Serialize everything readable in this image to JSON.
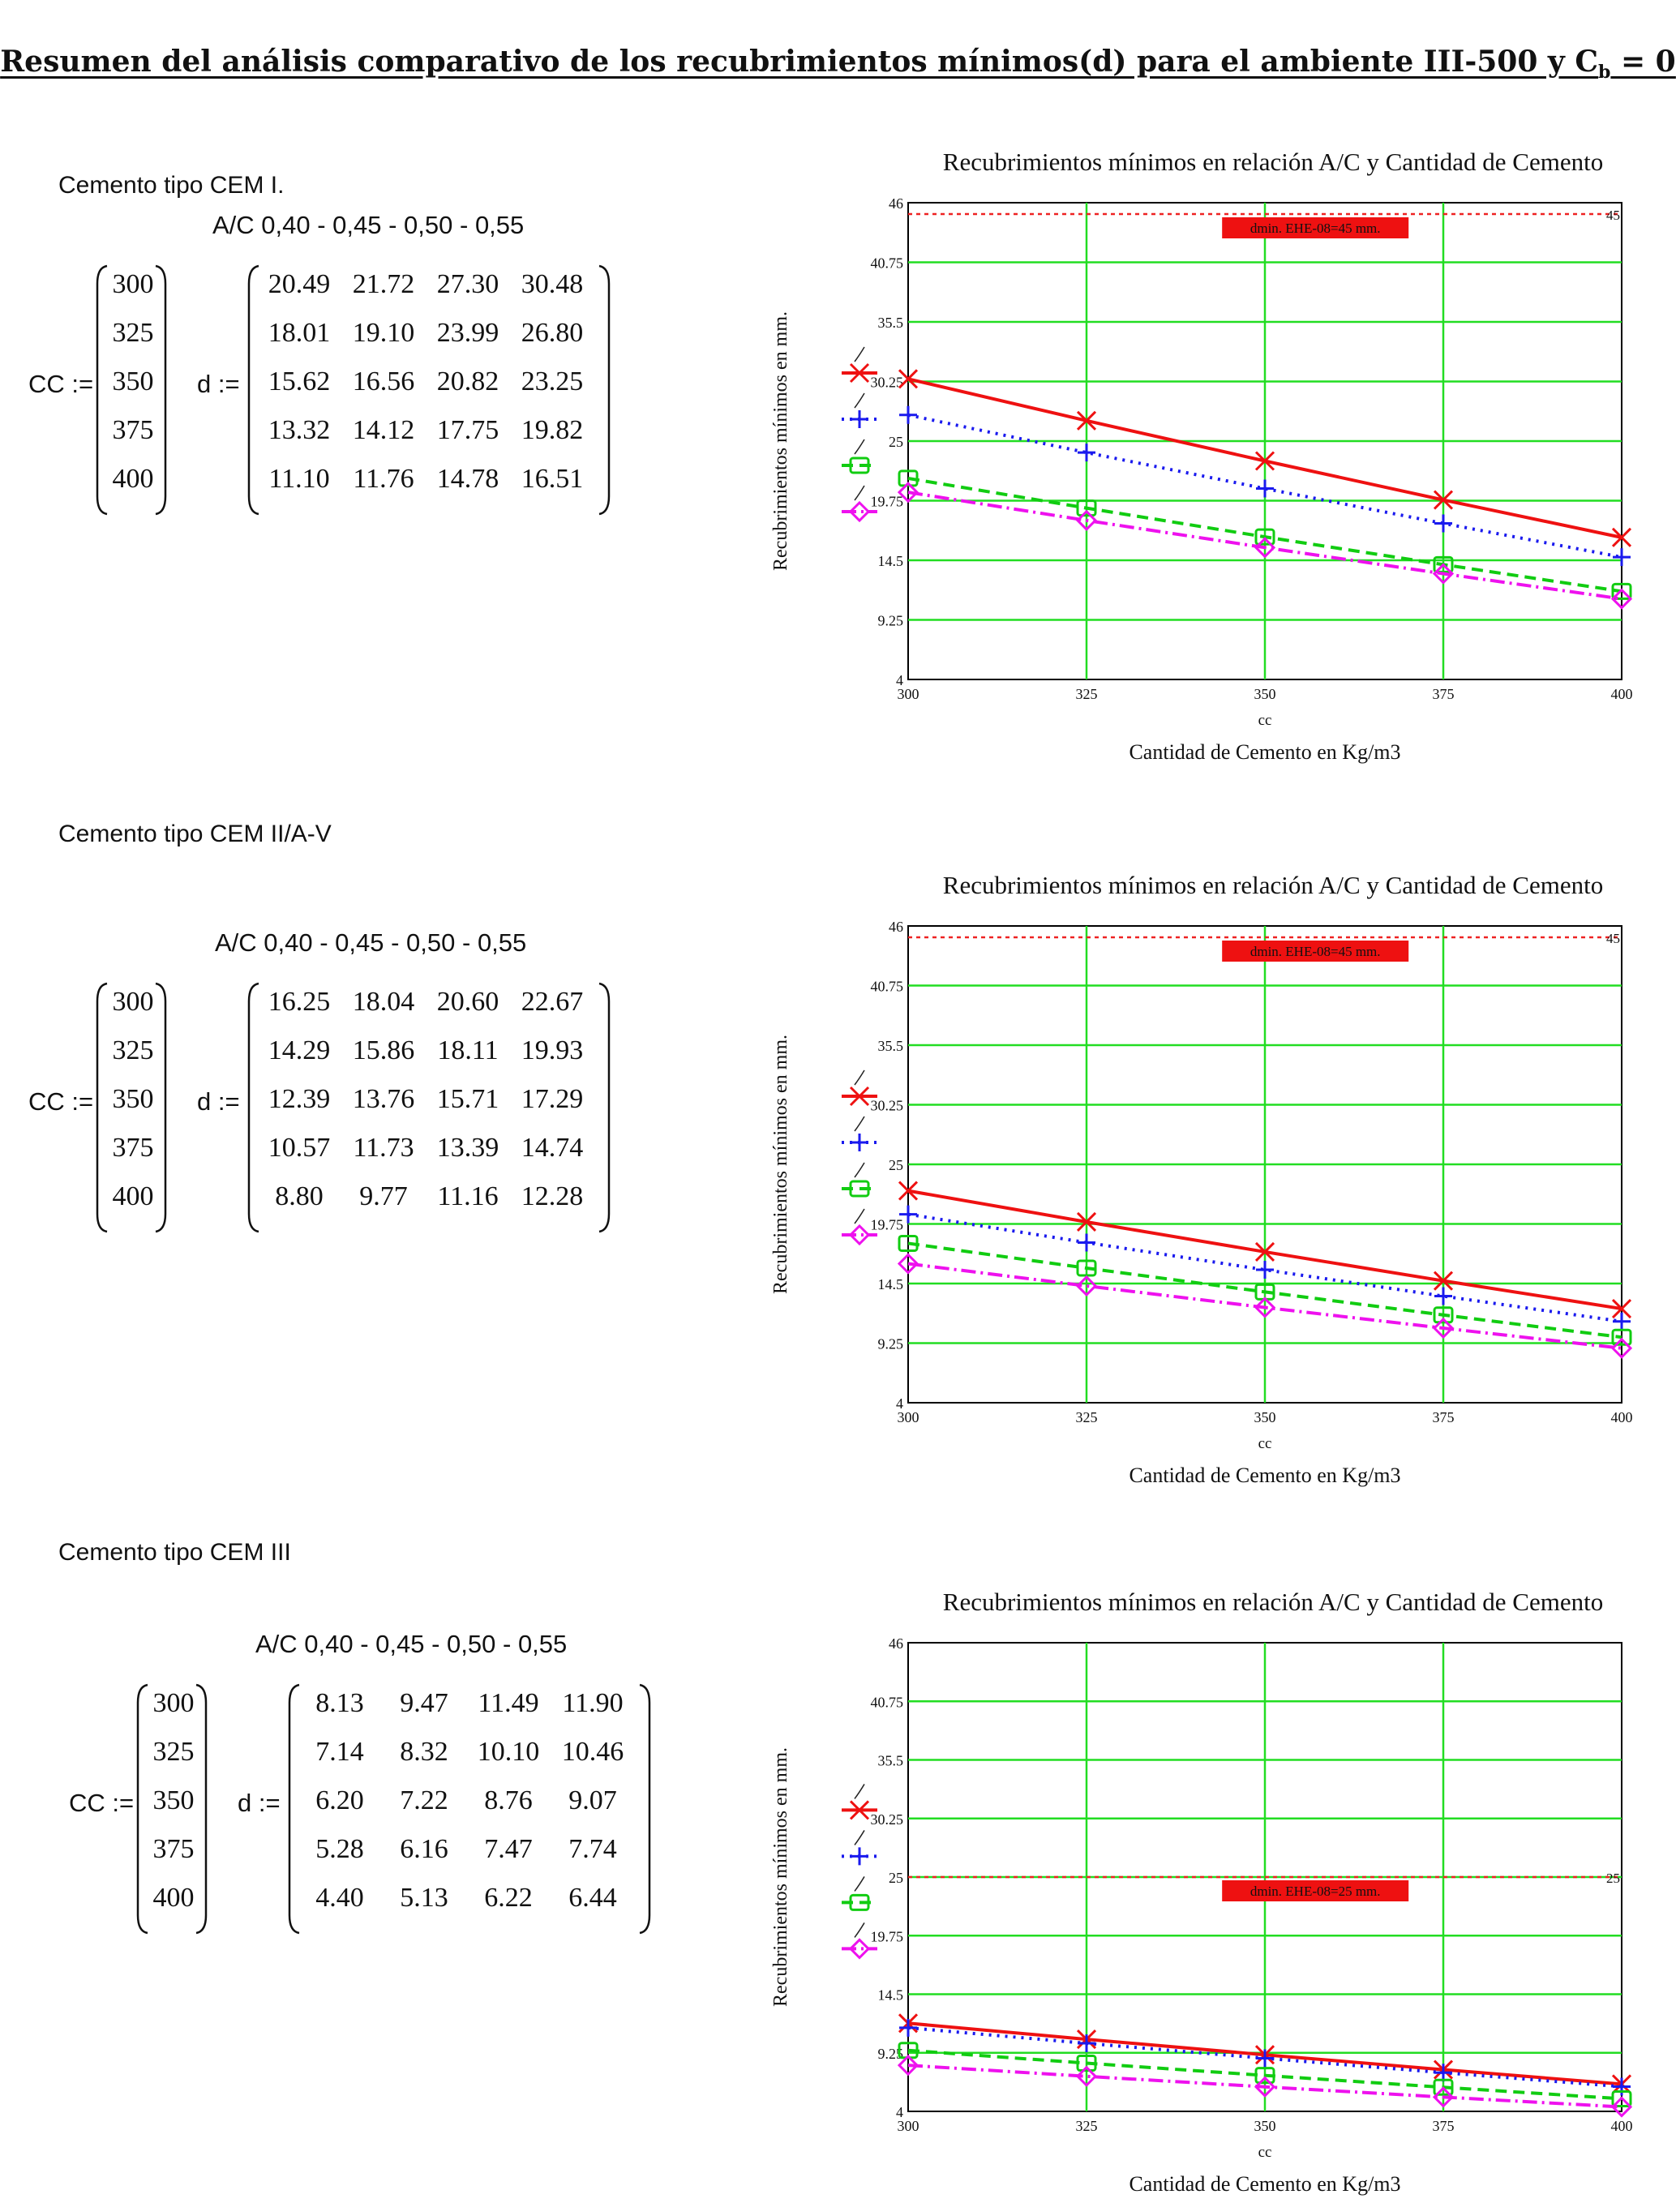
{
  "page": {
    "title_main": "Resumen del análisis comparativo de los recubrimientos mínimos(d) para el ambiente III-500 y C",
    "title_sub": "b",
    "title_tail": " = 0"
  },
  "sections": [
    {
      "label": "Cemento tipo CEM I.",
      "ac_header": "A/C  0,40 -  0,45 -  0,50 -  0,55",
      "cc_label": "CC :=",
      "d_label": "d :=",
      "cc": [
        "300",
        "325",
        "350",
        "375",
        "400"
      ],
      "d": [
        [
          "20.49",
          "21.72",
          "27.30",
          "30.48"
        ],
        [
          "18.01",
          "19.10",
          "23.99",
          "26.80"
        ],
        [
          "15.62",
          "16.56",
          "20.82",
          "23.25"
        ],
        [
          "13.32",
          "14.12",
          "17.75",
          "19.82"
        ],
        [
          "11.10",
          "11.76",
          "14.78",
          "16.51"
        ]
      ]
    },
    {
      "label": "Cemento tipo CEM II/A-V",
      "ac_header": "A/C  0,40 -  0,45 -  0,50 -  0,55",
      "cc_label": "CC :=",
      "d_label": "d :=",
      "cc": [
        "300",
        "325",
        "350",
        "375",
        "400"
      ],
      "d": [
        [
          "16.25",
          "18.04",
          "20.60",
          "22.67"
        ],
        [
          "14.29",
          "15.86",
          "18.11",
          "19.93"
        ],
        [
          "12.39",
          "13.76",
          "15.71",
          "17.29"
        ],
        [
          "10.57",
          "11.73",
          "13.39",
          "14.74"
        ],
        [
          "8.80",
          "9.77",
          "11.16",
          "12.28"
        ]
      ]
    },
    {
      "label": "Cemento tipo CEM III",
      "ac_header": "A/C  0,40 -  0,45 -  0,50 -  0,55",
      "cc_label": "CC :=",
      "d_label": "d :=",
      "cc": [
        "300",
        "325",
        "350",
        "375",
        "400"
      ],
      "d": [
        [
          "8.13",
          "9.47",
          "11.49",
          "11.90"
        ],
        [
          "7.14",
          "8.32",
          "10.10",
          "10.46"
        ],
        [
          "6.20",
          "7.22",
          "8.76",
          "9.07"
        ],
        [
          "5.28",
          "6.16",
          "7.47",
          "7.74"
        ],
        [
          "4.40",
          "5.13",
          "6.22",
          "6.44"
        ]
      ]
    }
  ],
  "chart_data": [
    {
      "type": "line",
      "title": "Recubrimientos mínimos en relación A/C y Cantidad de Cemento",
      "xlabel": "Cantidad de Cemento en Kg/m3",
      "xvar": "cc",
      "ylabel": "Recubrimientos mínimos en mm.",
      "x": [
        300,
        325,
        350,
        375,
        400
      ],
      "xticks": [
        "300",
        "325",
        "350",
        "375",
        "400"
      ],
      "ylim": [
        4,
        46
      ],
      "yticks": [
        "4",
        "9.25",
        "14.5",
        "19.75",
        "25",
        "30.25",
        "35.5",
        "40.75",
        "46"
      ],
      "grid": true,
      "series": [
        {
          "color": "#ee1111",
          "dash": "",
          "marker": "x",
          "values": [
            30.48,
            26.8,
            23.25,
            19.82,
            16.51
          ]
        },
        {
          "color": "#1a1aee",
          "dash": "3,7",
          "marker": "+",
          "values": [
            27.3,
            23.99,
            20.82,
            17.75,
            14.78
          ]
        },
        {
          "color": "#11cc11",
          "dash": "14,8",
          "marker": "square",
          "values": [
            21.72,
            19.1,
            16.56,
            14.12,
            11.76
          ]
        },
        {
          "color": "#ee11ee",
          "dash": "18,6,3,6",
          "marker": "diamond",
          "values": [
            20.49,
            18.01,
            15.62,
            13.32,
            11.1
          ]
        }
      ],
      "reference": {
        "value": 45,
        "label": "dmin. EHE-08=45 mm.",
        "right_label": "45"
      }
    },
    {
      "type": "line",
      "title": "Recubrimientos mínimos en relación A/C y Cantidad de Cemento",
      "xlabel": "Cantidad de Cemento en Kg/m3",
      "xvar": "cc",
      "ylabel": "Recubrimientos mínimos en mm.",
      "x": [
        300,
        325,
        350,
        375,
        400
      ],
      "xticks": [
        "300",
        "325",
        "350",
        "375",
        "400"
      ],
      "ylim": [
        4,
        46
      ],
      "yticks": [
        "4",
        "9.25",
        "14.5",
        "19.75",
        "25",
        "30.25",
        "35.5",
        "40.75",
        "46"
      ],
      "grid": true,
      "series": [
        {
          "color": "#ee1111",
          "dash": "",
          "marker": "x",
          "values": [
            22.67,
            19.93,
            17.29,
            14.74,
            12.28
          ]
        },
        {
          "color": "#1a1aee",
          "dash": "3,7",
          "marker": "+",
          "values": [
            20.6,
            18.11,
            15.71,
            13.39,
            11.16
          ]
        },
        {
          "color": "#11cc11",
          "dash": "14,8",
          "marker": "square",
          "values": [
            18.04,
            15.86,
            13.76,
            11.73,
            9.77
          ]
        },
        {
          "color": "#ee11ee",
          "dash": "18,6,3,6",
          "marker": "diamond",
          "values": [
            16.25,
            14.29,
            12.39,
            10.57,
            8.8
          ]
        }
      ],
      "reference": {
        "value": 45,
        "label": "dmin. EHE-08=45 mm.",
        "right_label": "45"
      }
    },
    {
      "type": "line",
      "title": "Recubrimientos mínimos en relación A/C y Cantidad de Cemento",
      "xlabel": "Cantidad de Cemento en Kg/m3",
      "xvar": "cc",
      "ylabel": "Recubrimientos mínimos en mm.",
      "x": [
        300,
        325,
        350,
        375,
        400
      ],
      "xticks": [
        "300",
        "325",
        "350",
        "375",
        "400"
      ],
      "ylim": [
        4,
        46
      ],
      "yticks": [
        "4",
        "9.25",
        "14.5",
        "19.75",
        "25",
        "30.25",
        "35.5",
        "40.75",
        "46"
      ],
      "grid": true,
      "series": [
        {
          "color": "#ee1111",
          "dash": "",
          "marker": "x",
          "values": [
            11.9,
            10.46,
            9.07,
            7.74,
            6.44
          ]
        },
        {
          "color": "#1a1aee",
          "dash": "3,7",
          "marker": "+",
          "values": [
            11.49,
            10.1,
            8.76,
            7.47,
            6.22
          ]
        },
        {
          "color": "#11cc11",
          "dash": "14,8",
          "marker": "square",
          "values": [
            9.47,
            8.32,
            7.22,
            6.16,
            5.13
          ]
        },
        {
          "color": "#ee11ee",
          "dash": "18,6,3,6",
          "marker": "diamond",
          "values": [
            8.13,
            7.14,
            6.2,
            5.28,
            4.4
          ]
        }
      ],
      "reference": {
        "value": 25,
        "label": "dmin. EHE-08=25 mm.",
        "right_label": "25"
      }
    }
  ]
}
